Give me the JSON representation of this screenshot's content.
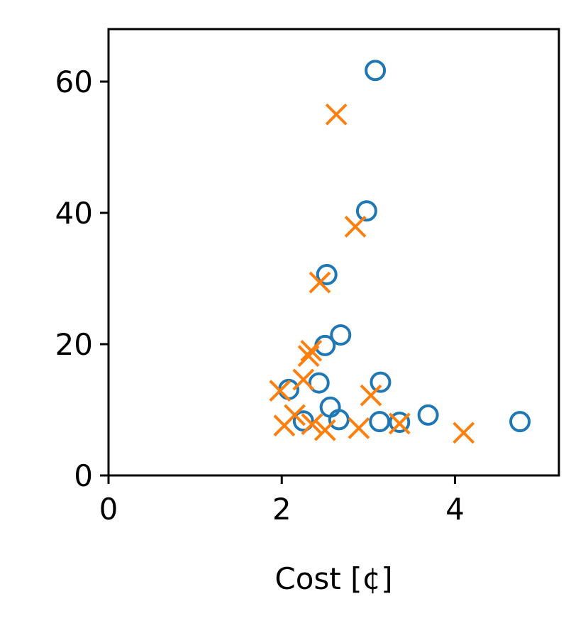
{
  "chart_data": {
    "type": "scatter",
    "title": "",
    "xlabel": "Cost [¢]",
    "ylabel": "",
    "xlim": [
      0,
      5.2
    ],
    "ylim": [
      0,
      68
    ],
    "xticks": [
      0,
      2,
      4
    ],
    "yticks": [
      0,
      20,
      40,
      60
    ],
    "xtick_labels": [
      "0",
      "2",
      "4"
    ],
    "ytick_labels": [
      "0",
      "20",
      "40",
      "60"
    ],
    "grid": false,
    "legend": null,
    "series": [
      {
        "marker": "circle",
        "color": "#1f77b4",
        "points": [
          {
            "x": 3.08,
            "y": 61.7
          },
          {
            "x": 2.98,
            "y": 40.3
          },
          {
            "x": 2.52,
            "y": 30.6
          },
          {
            "x": 2.68,
            "y": 21.4
          },
          {
            "x": 2.5,
            "y": 19.8
          },
          {
            "x": 2.08,
            "y": 13.1
          },
          {
            "x": 2.43,
            "y": 14.1
          },
          {
            "x": 3.14,
            "y": 14.2
          },
          {
            "x": 2.56,
            "y": 10.4
          },
          {
            "x": 2.66,
            "y": 8.5
          },
          {
            "x": 2.25,
            "y": 8.3
          },
          {
            "x": 3.13,
            "y": 8.2
          },
          {
            "x": 3.36,
            "y": 8.1
          },
          {
            "x": 3.69,
            "y": 9.2
          },
          {
            "x": 4.75,
            "y": 8.2
          }
        ]
      },
      {
        "marker": "x",
        "color": "#ff7f0e",
        "points": [
          {
            "x": 2.63,
            "y": 55.0
          },
          {
            "x": 2.85,
            "y": 37.9
          },
          {
            "x": 2.44,
            "y": 29.4
          },
          {
            "x": 2.34,
            "y": 19.0
          },
          {
            "x": 2.31,
            "y": 18.2
          },
          {
            "x": 2.25,
            "y": 14.6
          },
          {
            "x": 1.98,
            "y": 12.9
          },
          {
            "x": 3.03,
            "y": 12.2
          },
          {
            "x": 2.15,
            "y": 9.2
          },
          {
            "x": 2.03,
            "y": 7.6
          },
          {
            "x": 2.35,
            "y": 7.8
          },
          {
            "x": 2.5,
            "y": 6.9
          },
          {
            "x": 2.89,
            "y": 7.2
          },
          {
            "x": 3.36,
            "y": 7.9
          },
          {
            "x": 4.1,
            "y": 6.5
          }
        ]
      }
    ]
  }
}
